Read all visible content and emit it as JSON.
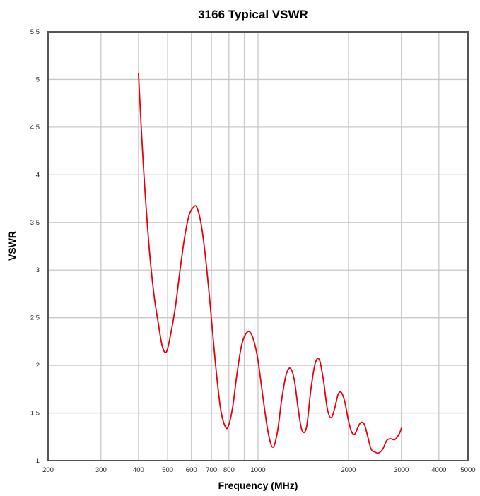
{
  "chart_data": {
    "type": "line",
    "title": "3166 Typical VSWR",
    "xlabel": "Frequency (MHz)",
    "ylabel": "VSWR",
    "x_scale": "log",
    "xlim": [
      200,
      5000
    ],
    "ylim": [
      1,
      5.5
    ],
    "x_ticks": [
      {
        "value": 200,
        "label": "200"
      },
      {
        "value": 300,
        "label": "300"
      },
      {
        "value": 400,
        "label": "400"
      },
      {
        "value": 500,
        "label": "500"
      },
      {
        "value": 600,
        "label": "600"
      },
      {
        "value": 700,
        "label": "700"
      },
      {
        "value": 800,
        "label": "800"
      },
      {
        "value": 1000,
        "label": "1000"
      },
      {
        "value": 2000,
        "label": "2000"
      },
      {
        "value": 3000,
        "label": "3000"
      },
      {
        "value": 4000,
        "label": "4000"
      },
      {
        "value": 5000,
        "label": "5000"
      }
    ],
    "x_gridlines": [
      200,
      300,
      400,
      500,
      600,
      700,
      800,
      900,
      1000,
      2000,
      3000,
      4000,
      5000
    ],
    "y_ticks": [
      {
        "value": 1,
        "label": "1"
      },
      {
        "value": 1.5,
        "label": "1.5"
      },
      {
        "value": 2,
        "label": "2"
      },
      {
        "value": 2.5,
        "label": "2.5"
      },
      {
        "value": 3,
        "label": "3"
      },
      {
        "value": 3.5,
        "label": "3.5"
      },
      {
        "value": 4,
        "label": "4"
      },
      {
        "value": 4.5,
        "label": "4.5"
      },
      {
        "value": 5,
        "label": "5"
      },
      {
        "value": 5.5,
        "label": "5.5"
      }
    ],
    "grid": true,
    "series_color": "#e8000b",
    "series": [
      {
        "x": [
          400,
          410,
          420,
          435,
          450,
          465,
          480,
          495,
          510,
          530,
          550,
          570,
          590,
          610,
          625,
          645,
          665,
          690,
          720,
          750,
          780,
          800,
          825,
          850,
          880,
          910,
          940,
          970,
          1000,
          1040,
          1080,
          1120,
          1160,
          1200,
          1240,
          1280,
          1320,
          1360,
          1400,
          1450,
          1500,
          1550,
          1600,
          1650,
          1700,
          1750,
          1800,
          1850,
          1900,
          1950,
          2000,
          2050,
          2100,
          2150,
          2200,
          2260,
          2320,
          2380,
          2450,
          2520,
          2600,
          2680,
          2760,
          2850,
          2950,
          3000
        ],
        "y": [
          5.06,
          4.4,
          3.85,
          3.2,
          2.75,
          2.45,
          2.2,
          2.14,
          2.3,
          2.6,
          3.0,
          3.35,
          3.58,
          3.66,
          3.66,
          3.5,
          3.2,
          2.7,
          2.05,
          1.55,
          1.35,
          1.38,
          1.58,
          1.9,
          2.2,
          2.33,
          2.35,
          2.25,
          2.05,
          1.65,
          1.3,
          1.14,
          1.3,
          1.65,
          1.9,
          1.97,
          1.85,
          1.55,
          1.32,
          1.35,
          1.75,
          2.02,
          2.06,
          1.85,
          1.55,
          1.45,
          1.55,
          1.7,
          1.71,
          1.6,
          1.42,
          1.3,
          1.28,
          1.35,
          1.4,
          1.38,
          1.25,
          1.12,
          1.09,
          1.08,
          1.12,
          1.21,
          1.23,
          1.22,
          1.28,
          1.34
        ]
      }
    ]
  }
}
